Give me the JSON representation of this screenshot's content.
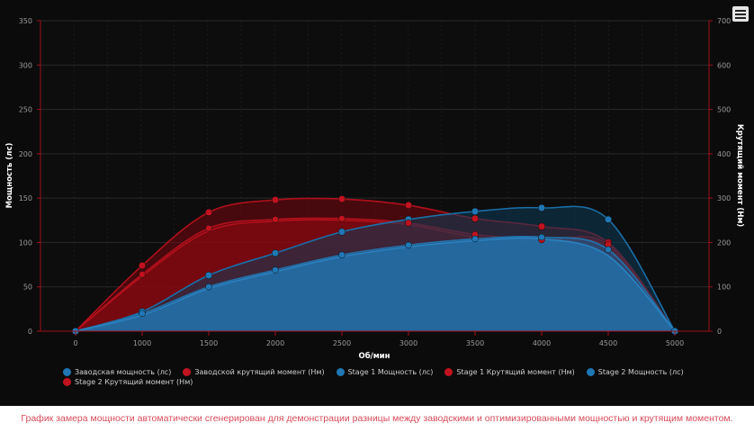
{
  "chart_data": {
    "type": "area",
    "x": [
      0,
      1000,
      1500,
      2000,
      2500,
      3000,
      3500,
      4000,
      4500,
      5000
    ],
    "x_ticks": [
      "0",
      "1000",
      "1500",
      "2000",
      "2500",
      "3000",
      "3500",
      "4000",
      "4500",
      "5000"
    ],
    "xlabel": "Об/мин",
    "ylabel_left": "Мощность (лс)",
    "ylabel_right": "Крутящий момент (Нм)",
    "ylim_left": [
      0,
      350
    ],
    "ylim_right": [
      0,
      700
    ],
    "yticks_left": [
      "0",
      "50",
      "100",
      "150",
      "200",
      "250",
      "300",
      "350"
    ],
    "yticks_right": [
      "0",
      "100",
      "200",
      "300",
      "400",
      "500",
      "600",
      "700"
    ],
    "grid": true,
    "legend_position": "bottom",
    "series": [
      {
        "name": "Заводская мощность (лс)",
        "axis": "left",
        "color": "#1f77b4",
        "values": [
          0,
          18,
          48,
          67,
          84,
          95,
          102,
          104,
          85,
          0
        ]
      },
      {
        "name": "Заводской крутящий момент (Нм)",
        "axis": "right",
        "color": "#c1121f",
        "values": [
          0,
          124,
          226,
          248,
          250,
          240,
          212,
          200,
          190,
          0
        ]
      },
      {
        "name": "Stage 1 Мощность (лс)",
        "axis": "left",
        "color": "#1f77b4",
        "values": [
          0,
          20,
          50,
          69,
          86,
          97,
          104,
          106,
          92,
          0
        ]
      },
      {
        "name": "Stage 1 Крутящий момент (Нм)",
        "axis": "right",
        "color": "#c1121f",
        "values": [
          0,
          128,
          232,
          252,
          254,
          244,
          218,
          206,
          196,
          0
        ]
      },
      {
        "name": "Stage 2 Мощность (лс)",
        "axis": "left",
        "color": "#1f77b4",
        "values": [
          0,
          22,
          63,
          88,
          112,
          126,
          135,
          139,
          126,
          0
        ]
      },
      {
        "name": "Stage 2 Крутящий момент (Нм)",
        "axis": "right",
        "color": "#c1121f",
        "values": [
          0,
          148,
          268,
          296,
          298,
          284,
          254,
          236,
          200,
          0
        ]
      }
    ]
  },
  "footer_text": "График замера мощности автоматически сгенерирован для демонстрации разницы между заводскими и оптимизированными мощностью и крутящим моментом."
}
